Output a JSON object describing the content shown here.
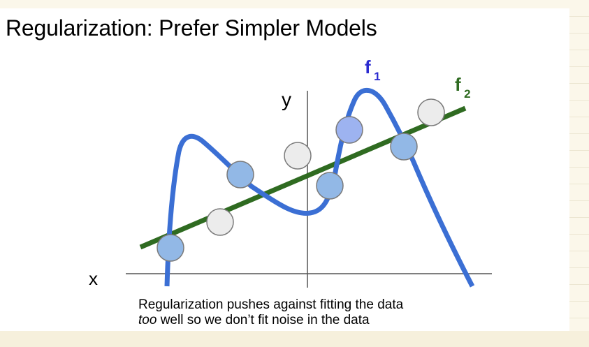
{
  "slide": {
    "title": "Regularization: Prefer Simpler Models",
    "caption": {
      "line1": "Regularization pushes against fitting the data",
      "line2_emph": "too",
      "line2_rest": " well so we don’t fit noise in the data"
    }
  },
  "diagram": {
    "x_axis_label": "x",
    "y_axis_label": "y",
    "f1_letter": "f",
    "f1_subscript": "1",
    "f2_letter": "f",
    "f2_subscript": "2",
    "colors": {
      "f1_curve": "#3b6fd4",
      "f1_label": "#2a2ad0",
      "f2_line": "#2f6b21",
      "f2_label": "#2f6b21",
      "point_fitted": "#92b8e6",
      "point_fitted_alt": "#9db3f0",
      "point_noise": "#ececec",
      "point_stroke": "#7a7a7a",
      "axis": "#555555"
    },
    "points": [
      {
        "type": "fitted"
      },
      {
        "type": "noise"
      },
      {
        "type": "fitted"
      },
      {
        "type": "noise"
      },
      {
        "type": "fitted"
      },
      {
        "type": "fitted_alt"
      },
      {
        "type": "fitted"
      },
      {
        "type": "noise"
      }
    ]
  }
}
